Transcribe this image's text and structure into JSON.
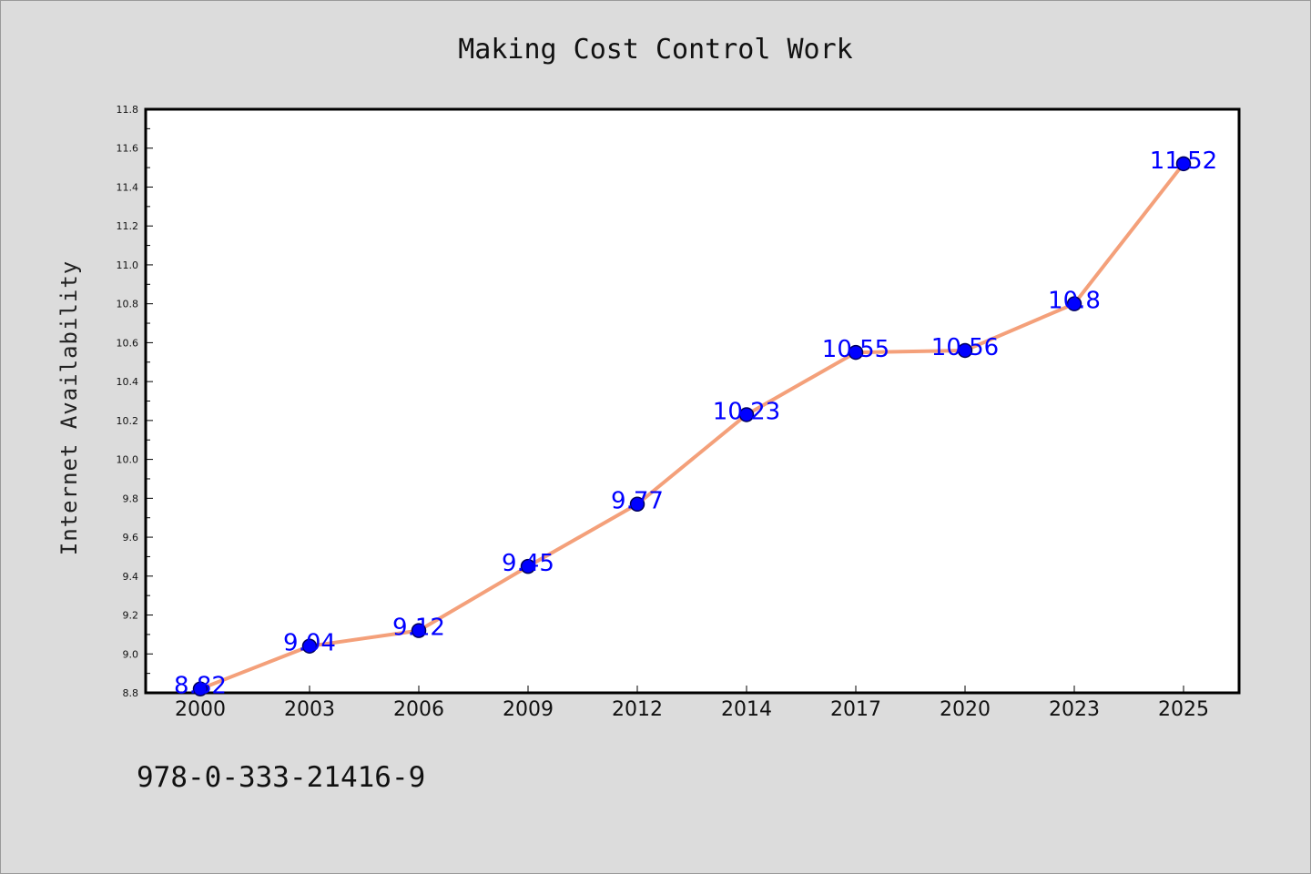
{
  "chart_data": {
    "type": "line",
    "title": "Making Cost Control Work",
    "xlabel": "",
    "ylabel": "Internet Availability",
    "categories": [
      "2000",
      "2003",
      "2006",
      "2009",
      "2012",
      "2014",
      "2017",
      "2020",
      "2023",
      "2025"
    ],
    "series": [
      {
        "values": [
          8.82,
          9.04,
          9.12,
          9.45,
          9.77,
          10.23,
          10.55,
          10.56,
          10.8,
          11.52
        ],
        "data_labels": [
          "8.82",
          "9.04",
          "9.12",
          "9.45",
          "9.77",
          "10.23",
          "10.55",
          "10.56",
          "10.8",
          "11.52"
        ]
      }
    ],
    "ylim": [
      8.8,
      11.8
    ],
    "yticks": [
      "8.8",
      "9.0",
      "9.2",
      "9.4",
      "9.6",
      "9.8",
      "10.0",
      "10.2",
      "10.4",
      "10.6",
      "10.8",
      "11.0",
      "11.2",
      "11.4",
      "11.6",
      "11.8"
    ],
    "grid": false,
    "legend": "none",
    "colors": {
      "line": "#f4a07a",
      "marker": "#0000ff",
      "marker_edge": "#00005a",
      "data_label": "#0000ff",
      "plot_background": "#ffffff",
      "figure_background": "#dcdcdc"
    }
  },
  "footer": {
    "isbn": "978-0-333-21416-9"
  }
}
